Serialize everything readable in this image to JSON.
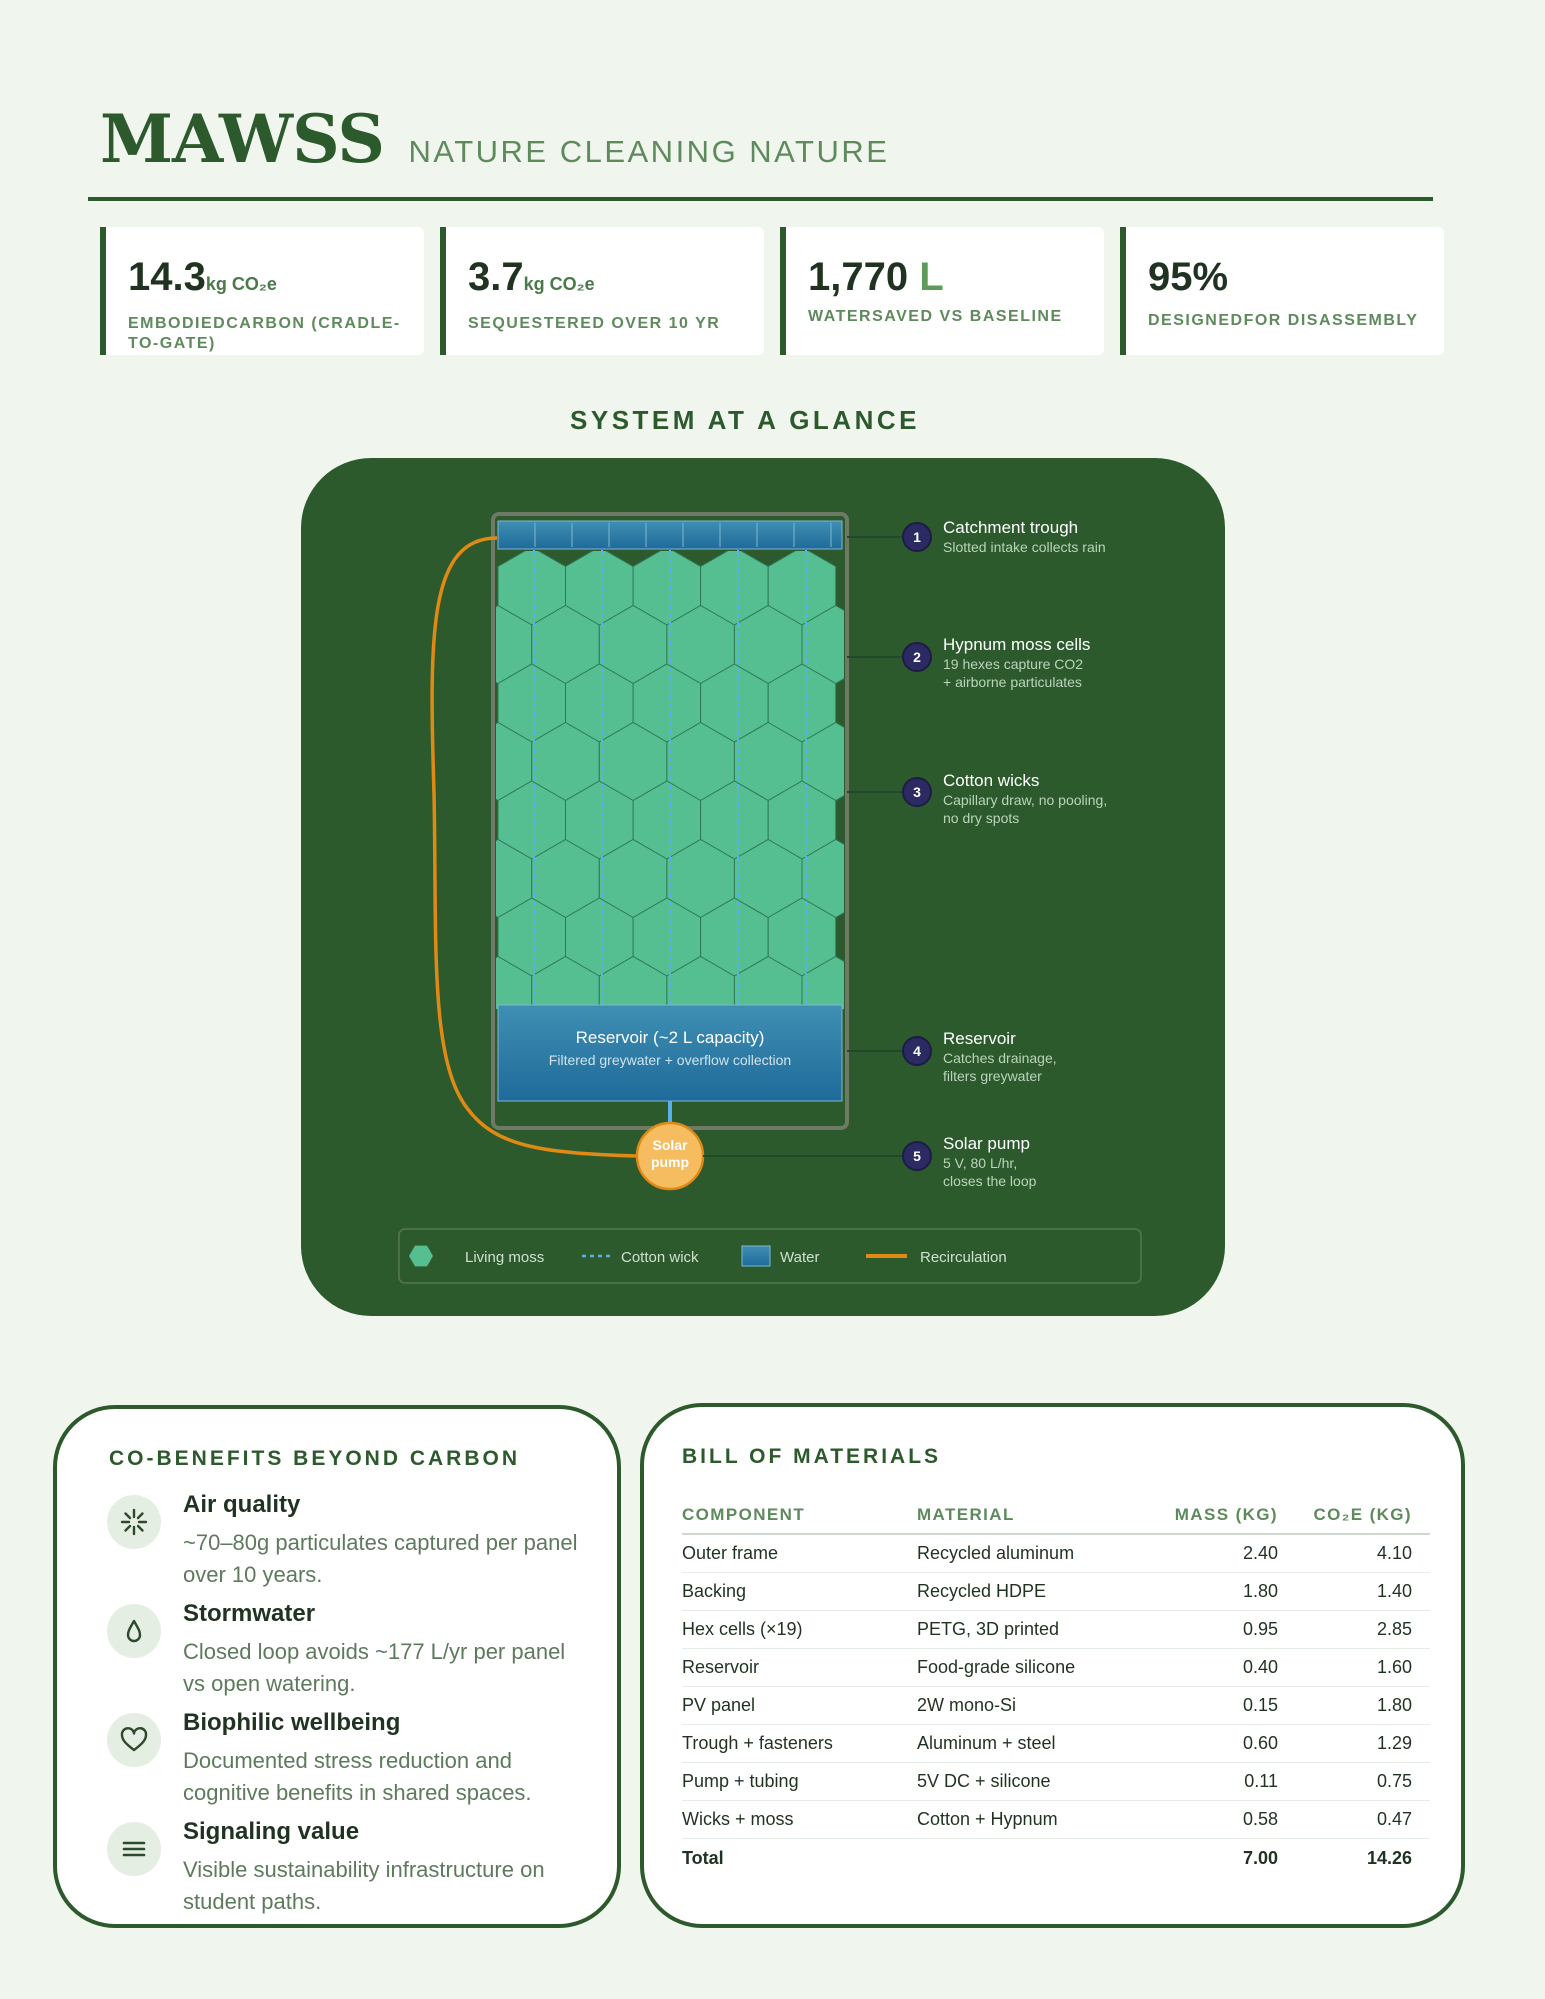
{
  "header": {
    "brand": "MAWSS",
    "tagline": "NATURE CLEANING NATURE"
  },
  "stats": [
    {
      "value": "14.3",
      "unit": "kg CO₂e",
      "label": "EMBODIEDCARBON (CRADLE-TO-GATE)"
    },
    {
      "value": "3.7",
      "unit": "kg CO₂e",
      "label": "SEQUESTERED OVER 10 YR"
    },
    {
      "value": "1,770",
      "unit": "L",
      "label": "WATERSAVED VS BASELINE"
    },
    {
      "value": "95%",
      "unit": "",
      "label": "DESIGNEDFOR DISASSEMBLY"
    }
  ],
  "glance": {
    "title": "SYSTEM AT A GLANCE",
    "reservoir_title": "Reservoir (~2 L capacity)",
    "reservoir_sub": "Filtered greywater + overflow collection",
    "pump_label_1": "Solar",
    "pump_label_2": "pump",
    "callouts": [
      {
        "num": "1",
        "title": "Catchment trough",
        "lines": [
          "Slotted intake collects rain"
        ]
      },
      {
        "num": "2",
        "title": "Hypnum moss cells",
        "lines": [
          "19 hexes capture CO2",
          "+ airborne particulates"
        ]
      },
      {
        "num": "3",
        "title": "Cotton wicks",
        "lines": [
          "Capillary draw, no pooling,",
          "no dry spots"
        ]
      },
      {
        "num": "4",
        "title": "Reservoir",
        "lines": [
          "Catches drainage,",
          "filters greywater"
        ]
      },
      {
        "num": "5",
        "title": "Solar pump",
        "lines": [
          "5 V, 80 L/hr,",
          "closes the loop"
        ]
      }
    ],
    "legend": [
      "Living moss",
      "Cotton wick",
      "Water",
      "Recirculation"
    ],
    "colors": {
      "moss": "#56bf92",
      "wick": "#5ab0e8",
      "water": "#2f7fa8",
      "recirculation": "#e08a16",
      "pump": "#f6bd60",
      "badge": "#2b2a63"
    }
  },
  "benefits": {
    "title": "CO-BENEFITS BEYOND CARBON",
    "items": [
      {
        "icon": "sparkle-icon",
        "title": "Air quality",
        "desc": "~70–80g particulates captured per panel over 10 years."
      },
      {
        "icon": "water-drop-icon",
        "title": "Stormwater",
        "desc": "Closed loop avoids ~177 L/yr per panel vs open watering."
      },
      {
        "icon": "heart-icon",
        "title": "Biophilic wellbeing",
        "desc": "Documented stress reduction and cognitive benefits in shared spaces."
      },
      {
        "icon": "menu-lines-icon",
        "title": "Signaling value",
        "desc": "Visible sustainability infrastructure on student paths."
      }
    ]
  },
  "bom": {
    "title": "BILL OF MATERIALS",
    "headers": [
      "COMPONENT",
      "MATERIAL",
      "MASS (KG)",
      "CO₂E (KG)"
    ],
    "rows": [
      [
        "Outer frame",
        "Recycled aluminum",
        "2.40",
        "4.10"
      ],
      [
        "Backing",
        "Recycled HDPE",
        "1.80",
        "1.40"
      ],
      [
        "Hex cells (×19)",
        "PETG, 3D printed",
        "0.95",
        "2.85"
      ],
      [
        "Reservoir",
        "Food-grade silicone",
        "0.40",
        "1.60"
      ],
      [
        "PV panel",
        "2W mono-Si",
        "0.15",
        "1.80"
      ],
      [
        "Trough + fasteners",
        "Aluminum + steel",
        "0.60",
        "1.29"
      ],
      [
        "Pump + tubing",
        "5V DC + silicone",
        "0.11",
        "0.75"
      ],
      [
        "Wicks + moss",
        "Cotton + Hypnum",
        "0.58",
        "0.47"
      ]
    ],
    "total": [
      "Total",
      "",
      "7.00",
      "14.26"
    ]
  }
}
